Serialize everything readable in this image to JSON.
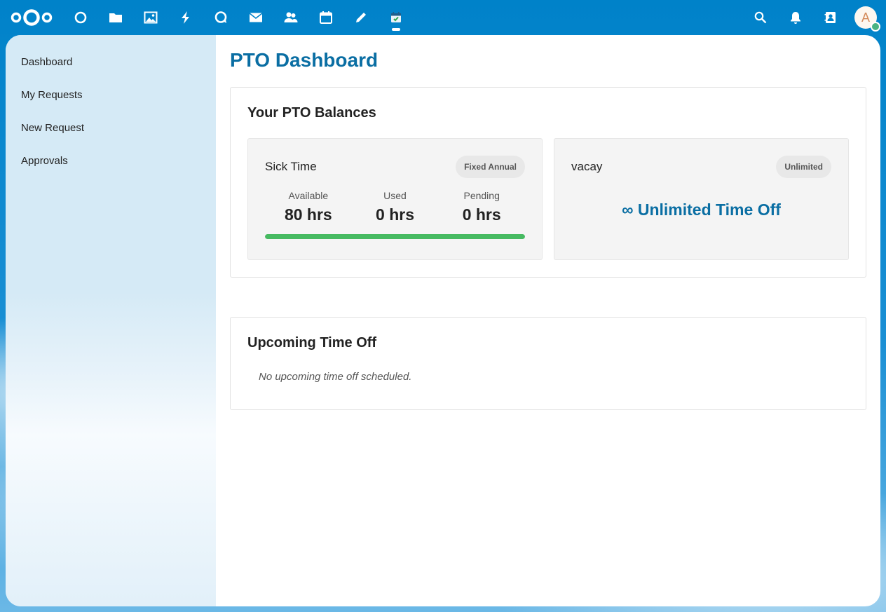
{
  "header": {
    "apps": [
      {
        "name": "dashboard-app-icon",
        "icon": "circle"
      },
      {
        "name": "files-app-icon",
        "icon": "folder"
      },
      {
        "name": "photos-app-icon",
        "icon": "image"
      },
      {
        "name": "activity-app-icon",
        "icon": "lightning"
      },
      {
        "name": "talk-app-icon",
        "icon": "chat-bubble"
      },
      {
        "name": "mail-app-icon",
        "icon": "envelope"
      },
      {
        "name": "contacts-app-icon",
        "icon": "people"
      },
      {
        "name": "calendar-app-icon",
        "icon": "calendar"
      },
      {
        "name": "notes-app-icon",
        "icon": "pencil"
      },
      {
        "name": "pto-app-icon",
        "icon": "calendar-check",
        "active": true
      }
    ],
    "avatar_initial": "A"
  },
  "sidebar": {
    "items": [
      {
        "label": "Dashboard"
      },
      {
        "label": "My Requests"
      },
      {
        "label": "New Request"
      },
      {
        "label": "Approvals"
      }
    ]
  },
  "main": {
    "title": "PTO Dashboard",
    "balances": {
      "title": "Your PTO Balances",
      "cards": [
        {
          "name": "Sick Time",
          "badge": "Fixed Annual",
          "stats": [
            {
              "label": "Available",
              "value": "80 hrs"
            },
            {
              "label": "Used",
              "value": "0 hrs"
            },
            {
              "label": "Pending",
              "value": "0 hrs"
            }
          ],
          "progress_remaining_fraction": 1.0
        },
        {
          "name": "vacay",
          "badge": "Unlimited",
          "unlimited_text": "∞ Unlimited Time Off"
        }
      ]
    },
    "upcoming": {
      "title": "Upcoming Time Off",
      "empty_text": "No upcoming time off scheduled."
    }
  },
  "colors": {
    "header_bg": "#0082c9",
    "title_blue": "#0a6ea3",
    "progress_green": "#46ba61"
  }
}
